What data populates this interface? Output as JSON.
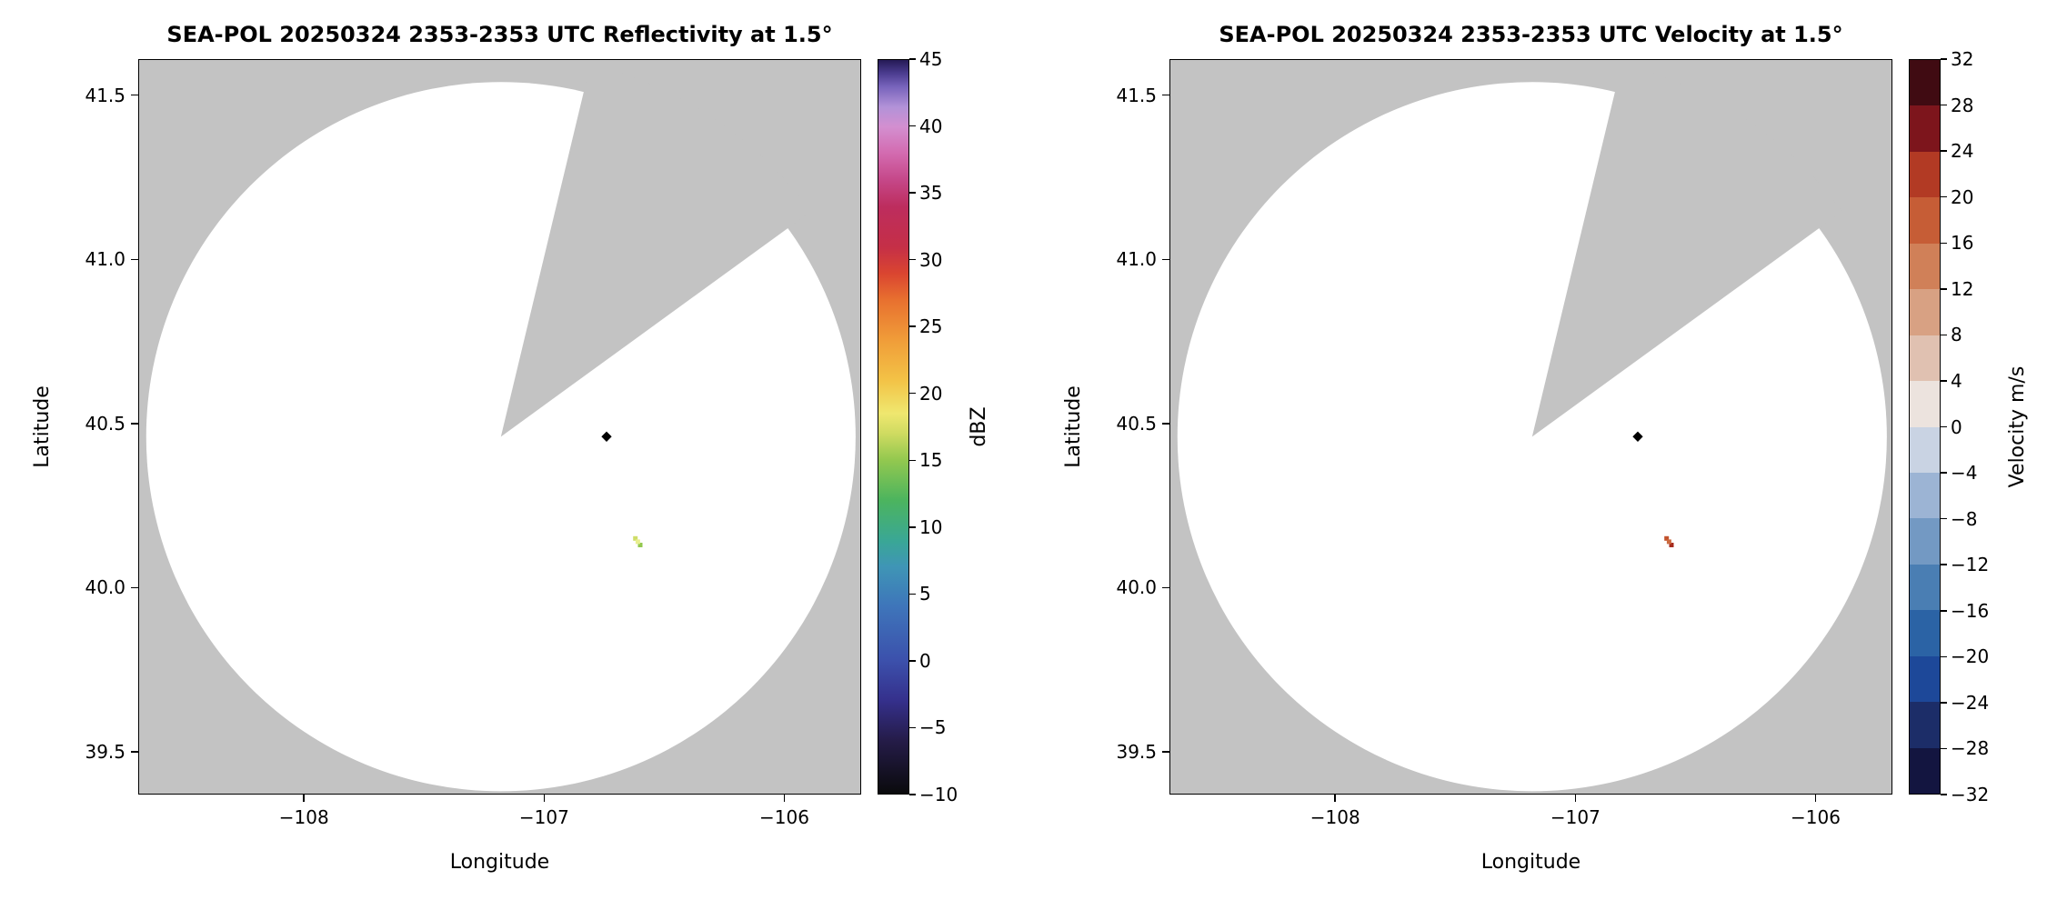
{
  "figure": {
    "background": "#ffffff",
    "no_data_color": "#c3c3c3",
    "plot_border_color": "#000000"
  },
  "chart_data": [
    {
      "type": "heatmap",
      "subtype": "radar-ppi",
      "title": "SEA-POL 20250324 2353-2353 UTC Reflectivity at 1.5°",
      "xlabel": "Longitude",
      "ylabel": "Latitude",
      "xlim": [
        -108.69,
        -105.68
      ],
      "ylim": [
        39.37,
        41.61
      ],
      "grid": false,
      "xticks": {
        "values": [
          -108,
          -107,
          -106
        ],
        "labels": [
          "−108",
          "−107",
          "−106"
        ]
      },
      "yticks": {
        "values": [
          41.5,
          41.0,
          40.5,
          40.0,
          39.5
        ],
        "labels": [
          "41.5",
          "41.0",
          "40.5",
          "40.0",
          "39.5"
        ]
      },
      "radar_coverage": {
        "center_lon": -107.18,
        "center_lat": 40.46,
        "radius_lat_deg": 1.08,
        "blocked_sector_azimuth_deg": [
          13.5,
          54
        ],
        "coverage_color": "#ffffff"
      },
      "colorbar": {
        "label": "dBZ",
        "min": -10,
        "max": 45,
        "style": "continuous",
        "position": "right",
        "tick_values": [
          45,
          40,
          35,
          30,
          25,
          20,
          15,
          10,
          5,
          0,
          -5,
          -10
        ],
        "tick_labels": [
          "45",
          "40",
          "35",
          "30",
          "25",
          "20",
          "15",
          "10",
          "5",
          "0",
          "−5",
          "−10"
        ],
        "gradient_stops": [
          [
            -10,
            "#0a0a0c"
          ],
          [
            -6,
            "#251c49"
          ],
          [
            -3,
            "#35308c"
          ],
          [
            0,
            "#3c51ac"
          ],
          [
            4,
            "#3e75ba"
          ],
          [
            7,
            "#3f95b6"
          ],
          [
            9,
            "#3aa795"
          ],
          [
            12,
            "#4cb45e"
          ],
          [
            15,
            "#93c84f"
          ],
          [
            17,
            "#cfdb61"
          ],
          [
            18.5,
            "#efe76f"
          ],
          [
            21,
            "#f3c246"
          ],
          [
            24,
            "#f09d39"
          ],
          [
            27,
            "#e8702f"
          ],
          [
            29,
            "#da4530"
          ],
          [
            31,
            "#c52f47"
          ],
          [
            34,
            "#bd2d5e"
          ],
          [
            36,
            "#c54788"
          ],
          [
            38,
            "#d36bb0"
          ],
          [
            40,
            "#d38fd0"
          ],
          [
            41.5,
            "#b292d8"
          ],
          [
            43,
            "#7763bb"
          ],
          [
            44,
            "#4b3c8f"
          ],
          [
            45,
            "#251a55"
          ]
        ]
      },
      "points": [
        {
          "lon": -106.74,
          "lat": 40.46,
          "marker": "diamond",
          "color": "#000000",
          "value_dbz": -10
        },
        {
          "lon": -106.62,
          "lat": 40.15,
          "marker": "pixel",
          "color": "#cfdd68",
          "value_dbz": 17
        },
        {
          "lon": -106.6,
          "lat": 40.13,
          "marker": "pixel",
          "color": "#93c84f",
          "value_dbz": 14
        },
        {
          "lon": -106.61,
          "lat": 40.14,
          "marker": "pixel",
          "color": "#e8ee8f",
          "value_dbz": 18
        }
      ]
    },
    {
      "type": "heatmap",
      "subtype": "radar-ppi",
      "title": "SEA-POL 20250324 2353-2353 UTC Velocity at 1.5°",
      "xlabel": "Longitude",
      "ylabel": "Latitude",
      "xlim": [
        -108.69,
        -105.68
      ],
      "ylim": [
        39.37,
        41.61
      ],
      "grid": false,
      "xticks": {
        "values": [
          -108,
          -107,
          -106
        ],
        "labels": [
          "−108",
          "−107",
          "−106"
        ]
      },
      "yticks": {
        "values": [
          41.5,
          41.0,
          40.5,
          40.0,
          39.5
        ],
        "labels": [
          "41.5",
          "41.0",
          "40.5",
          "40.0",
          "39.5"
        ]
      },
      "radar_coverage": {
        "center_lon": -107.18,
        "center_lat": 40.46,
        "radius_lat_deg": 1.08,
        "blocked_sector_azimuth_deg": [
          13.5,
          54
        ],
        "coverage_color": "#ffffff"
      },
      "colorbar": {
        "label": "Velocity m/s",
        "min": -32,
        "max": 32,
        "style": "discrete",
        "position": "right",
        "segment_step": 4,
        "tick_values": [
          32,
          28,
          24,
          20,
          16,
          12,
          8,
          4,
          0,
          -4,
          -8,
          -12,
          -16,
          -20,
          -24,
          -28,
          -32
        ],
        "tick_labels": [
          "32",
          "28",
          "24",
          "20",
          "16",
          "12",
          "8",
          "4",
          "0",
          "−4",
          "−8",
          "−12",
          "−16",
          "−20",
          "−24",
          "−28",
          "−32"
        ],
        "segment_colors_bottom_to_top": [
          "#131540",
          "#1c2d68",
          "#1d4899",
          "#2b63a5",
          "#4a7eb3",
          "#7399c3",
          "#9cb4d4",
          "#c9d3e3",
          "#ece3de",
          "#e0c1b1",
          "#d8a183",
          "#d08058",
          "#c65d36",
          "#b23a24",
          "#7d151c",
          "#400b12"
        ]
      },
      "points": [
        {
          "lon": -106.74,
          "lat": 40.46,
          "marker": "diamond",
          "color": "#000000",
          "value_ms": -32
        },
        {
          "lon": -106.62,
          "lat": 40.15,
          "marker": "pixel",
          "color": "#c2512c",
          "value_ms": 14
        },
        {
          "lon": -106.6,
          "lat": 40.13,
          "marker": "pixel",
          "color": "#a62a1d",
          "value_ms": 22
        },
        {
          "lon": -106.61,
          "lat": 40.14,
          "marker": "pixel",
          "color": "#cb6a3f",
          "value_ms": 10
        }
      ]
    }
  ]
}
